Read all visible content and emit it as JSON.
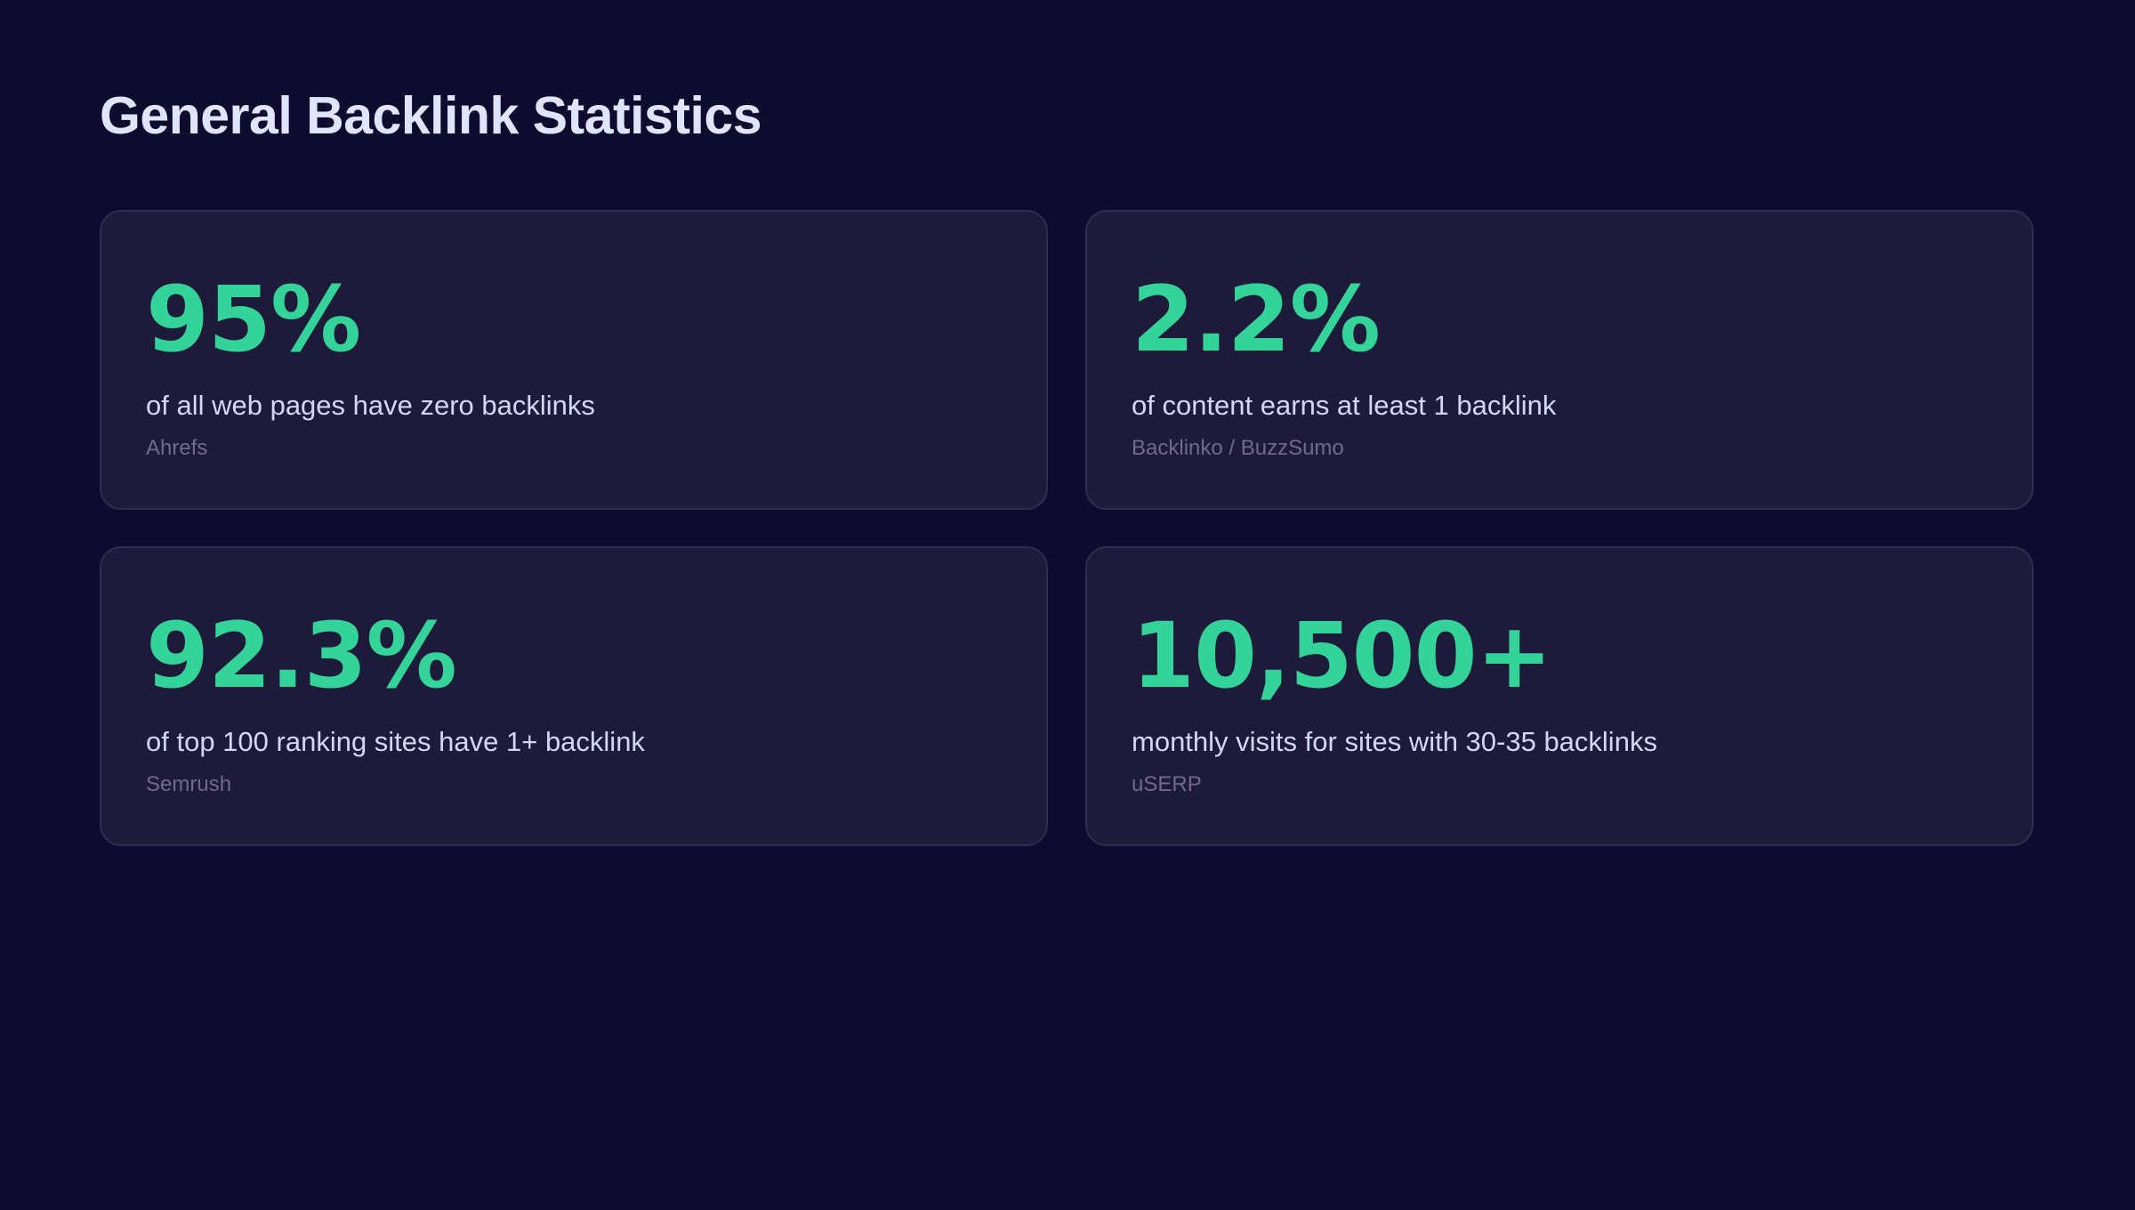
{
  "header": {
    "title": "General Backlink Statistics"
  },
  "colors": {
    "background": "#0f0b2e",
    "card_background": "#1e1a3a",
    "card_border": "#2f2b52",
    "accent_green": "#34d399",
    "title_text": "#e1e4ff",
    "description_text": "#d3d6f7",
    "source_text": "#6f6b8c"
  },
  "stats": [
    {
      "value": "95%",
      "description": "of all web pages have zero backlinks",
      "source": "Ahrefs"
    },
    {
      "value": "2.2%",
      "description": "of content earns at least 1 backlink",
      "source": "Backlinko / BuzzSumo"
    },
    {
      "value": "92.3%",
      "description": "of top 100 ranking sites have 1+ backlink",
      "source": "Semrush"
    },
    {
      "value": "10,500+",
      "description": "monthly visits for sites with 30-35 backlinks",
      "source": "uSERP"
    }
  ]
}
